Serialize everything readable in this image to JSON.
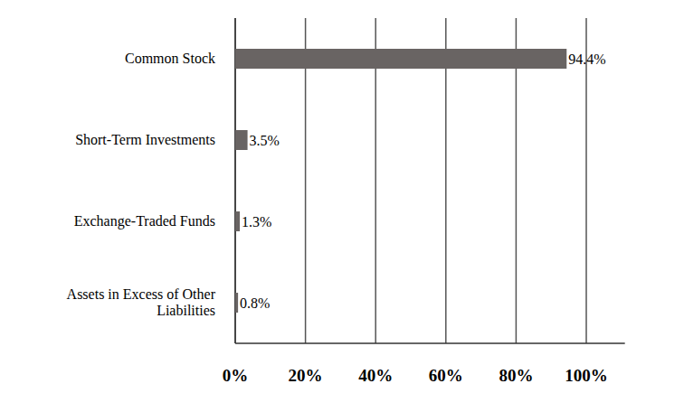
{
  "chart_data": {
    "type": "bar",
    "orientation": "horizontal",
    "categories": [
      "Common Stock",
      "Short-Term Investments",
      "Exchange-Traded Funds",
      "Assets in Excess of Other Liabilities"
    ],
    "values": [
      94.4,
      3.5,
      1.3,
      0.8
    ],
    "value_labels": [
      "94.4%",
      "3.5%",
      "1.3%",
      "0.8%"
    ],
    "data_labels": true,
    "color": "#696463",
    "xlim": [
      0,
      111
    ],
    "xticks": [
      {
        "value": 0,
        "label": "0%"
      },
      {
        "value": 20,
        "label": "20%"
      },
      {
        "value": 40,
        "label": "40%"
      },
      {
        "value": 60,
        "label": "60%"
      },
      {
        "value": 80,
        "label": "80%"
      },
      {
        "value": 100,
        "label": "100%"
      }
    ],
    "grid": true
  }
}
